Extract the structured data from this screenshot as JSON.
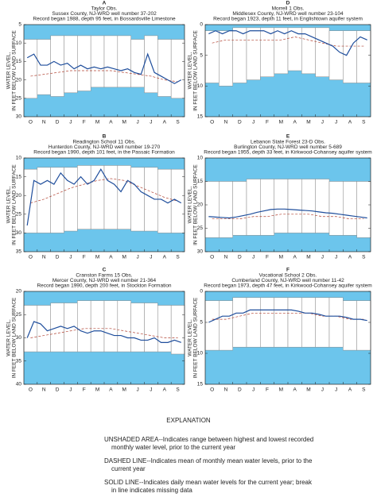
{
  "chart_data": [
    {
      "type": "hydrograph",
      "title": "A",
      "subtitle": [
        "Taylor Obs.",
        "Sussex County, NJ-WRD well number 37-202",
        "Record began 1988, depth 95 feet, in Bossardsville Limestone"
      ],
      "ylabel": [
        "WATER LEVEL,",
        "IN FEET BELOW LAND SURFACE"
      ],
      "categories": [
        "O",
        "N",
        "D",
        "J",
        "F",
        "M",
        "A",
        "M",
        "J",
        "J",
        "A",
        "S"
      ],
      "range_top": [
        9,
        9,
        8,
        8,
        8,
        8,
        8,
        8,
        9,
        8,
        9,
        9
      ],
      "range_bottom": [
        25,
        24,
        24.5,
        23.5,
        23,
        22,
        22,
        22,
        22,
        23.5,
        24.5,
        25
      ],
      "mean": [
        19,
        18.5,
        18,
        17.5,
        17.5,
        17.5,
        17.5,
        18,
        18.5,
        19,
        20,
        20.5
      ],
      "daily": [
        14,
        13,
        16,
        16,
        15,
        16,
        15.5,
        17,
        16,
        17,
        16.5,
        17,
        16.5,
        17,
        17.5,
        17,
        18,
        18.5,
        13,
        18,
        19,
        20,
        21,
        20
      ],
      "ylim": [
        5,
        30
      ],
      "yticks": [
        5,
        10,
        15,
        20,
        25,
        30
      ],
      "shade_color": "#6cc5ec",
      "line_color": "#1f4e9c"
    },
    {
      "type": "hydrograph",
      "title": "B",
      "subtitle": [
        "Readington School 11 Obs.",
        "Hunterdon County, NJ-WRD well number 19-270",
        "Record began 1990, depth 101 feet, in the Passaic Formation"
      ],
      "ylabel": [
        "WATER LEVEL,",
        "IN FEET BELOW LAND SURFACE"
      ],
      "categories": [
        "O",
        "N",
        "D",
        "J",
        "F",
        "M",
        "A",
        "M",
        "J",
        "J",
        "A",
        "S"
      ],
      "range_top": [
        13,
        12.5,
        12.5,
        12.5,
        12,
        12,
        12,
        12,
        12.5,
        12.5,
        13,
        13
      ],
      "range_bottom": [
        30,
        30,
        30,
        29.5,
        29,
        29,
        29,
        29,
        29.5,
        29.5,
        30,
        30
      ],
      "mean": [
        22,
        21,
        19.5,
        18,
        17,
        16,
        15.5,
        16,
        17.5,
        19,
        20.5,
        21.5
      ],
      "daily": [
        28,
        16,
        17,
        16,
        17,
        14,
        16,
        17,
        15,
        17,
        16,
        13,
        16,
        17,
        19,
        16,
        17,
        19,
        20,
        21,
        21,
        22,
        21,
        22
      ],
      "ylim": [
        10,
        35
      ],
      "yticks": [
        10,
        15,
        20,
        25,
        30,
        35
      ],
      "shade_color": "#6cc5ec",
      "line_color": "#1f4e9c"
    },
    {
      "type": "hydrograph",
      "title": "C",
      "subtitle": [
        "Cranston Farms 15 Obs.",
        "Mercer County, NJ-WRD well number 21-364",
        "Record began 1990, depth 200 feet, in Stockton Formation"
      ],
      "ylabel": [
        "WATER LEVEL,",
        "IN FEET BELOW LAND SURFACE"
      ],
      "categories": [
        "O",
        "N",
        "D",
        "J",
        "F",
        "M",
        "A",
        "M",
        "J",
        "J",
        "A",
        "S"
      ],
      "range_top": [
        23,
        23,
        22.5,
        22.5,
        22,
        22,
        22,
        22,
        22.5,
        22.5,
        23,
        23
      ],
      "range_bottom": [
        33,
        33,
        33,
        33,
        33,
        33,
        33,
        33,
        33,
        33,
        33,
        33.5
      ],
      "mean": [
        30,
        29.5,
        29,
        28.5,
        28,
        28,
        28,
        28.5,
        29,
        29.5,
        30,
        30
      ],
      "daily": [
        30,
        26.5,
        27,
        28.5,
        28,
        27.5,
        28,
        27.5,
        28.5,
        29,
        28.5,
        28.5,
        29,
        29.5,
        29.5,
        30,
        30,
        30.5,
        30.5,
        30,
        31,
        31,
        30.5,
        31
      ],
      "ylim": [
        20,
        40
      ],
      "yticks": [
        20,
        25,
        30,
        35,
        40
      ],
      "shade_color": "#6cc5ec",
      "line_color": "#1f4e9c"
    },
    {
      "type": "hydrograph",
      "title": "D",
      "subtitle": [
        "Morrell 1 Obs.",
        "Middlesex County, NJ-WRD well number 23-104",
        "Record began 1923, depth 11 feet, in Englishtown aquifer system"
      ],
      "ylabel": [
        "WATER LEVEL,",
        "IN FEET BELOW LAND SURFACE"
      ],
      "categories": [
        "O",
        "N",
        "D",
        "J",
        "F",
        "M",
        "A",
        "M",
        "J",
        "J",
        "A",
        "S"
      ],
      "range_top": [
        1,
        1,
        0.5,
        0.5,
        0.5,
        0.5,
        0.5,
        0.5,
        0.5,
        1,
        1,
        1
      ],
      "range_bottom": [
        9.5,
        10,
        9.5,
        9,
        8.5,
        8,
        7.5,
        8,
        8.5,
        9,
        9.5,
        9.5
      ],
      "mean": [
        3,
        2.5,
        2.5,
        2.5,
        2.5,
        2.5,
        2,
        2.5,
        3,
        3.5,
        3.5,
        3.5
      ],
      "daily": [
        1.5,
        1,
        1.5,
        1,
        1,
        1.5,
        1,
        1,
        1,
        1.5,
        1,
        1.5,
        1,
        1.5,
        1.5,
        2,
        2.5,
        3,
        3.5,
        4.5,
        5,
        3,
        2,
        2.5
      ],
      "ylim": [
        0,
        15
      ],
      "yticks": [
        0,
        5,
        10,
        15
      ],
      "shade_color": "#6cc5ec",
      "line_color": "#1f4e9c"
    },
    {
      "type": "hydrograph",
      "title": "E",
      "subtitle": [
        "Lebanon State Forest 23-D Obs.",
        "Burlington County, NJ-WRD well number 5-689",
        "Record began 1955, depth 33 feet, in Kirkwood-Cohansey aquifer system"
      ],
      "ylabel": [
        "WATER LEVEL,",
        "IN FEET BELOW LAND SURFACE"
      ],
      "categories": [
        "O",
        "N",
        "D",
        "J",
        "F",
        "M",
        "A",
        "M",
        "J",
        "J",
        "A",
        "S"
      ],
      "range_top": [
        15,
        15,
        15,
        14.5,
        14.5,
        14.5,
        14.5,
        14.5,
        14.5,
        15,
        15,
        15
      ],
      "range_bottom": [
        27,
        27,
        26.5,
        26.5,
        26.5,
        26,
        26,
        26,
        26,
        26.5,
        26.5,
        27
      ],
      "mean": [
        23,
        23,
        23,
        22.5,
        22.5,
        22,
        22,
        22,
        22.5,
        22.5,
        23,
        23
      ],
      "daily": [
        22.5,
        22.6,
        22.7,
        22.8,
        22.6,
        22.3,
        22,
        21.6,
        21.3,
        21,
        20.9,
        20.9,
        21,
        21.1,
        21.2,
        21.3,
        21.5,
        21.7,
        21.8,
        22,
        22.2,
        22.4,
        22.6,
        22.8
      ],
      "ylim": [
        10,
        30
      ],
      "yticks": [
        10,
        15,
        20,
        25,
        30
      ],
      "shade_color": "#6cc5ec",
      "line_color": "#1f4e9c"
    },
    {
      "type": "hydrograph",
      "title": "F",
      "subtitle": [
        "Vocational School 2 Obs.",
        "Cumberland County, NJ-WRD well number 11-42",
        "Record began 1973, depth 47 feet, in Kirkwood-Cohansey aquifer system"
      ],
      "ylabel": [
        "WATER LEVEL,",
        "IN FEET BELOW LAND SURFACE"
      ],
      "categories": [
        "O",
        "N",
        "D",
        "J",
        "F",
        "M",
        "A",
        "M",
        "J",
        "J",
        "A",
        "S"
      ],
      "range_top": [
        1.5,
        1.5,
        1,
        1,
        1,
        1,
        1,
        1,
        1,
        1,
        1.5,
        1.5
      ],
      "range_bottom": [
        9.5,
        9.5,
        9,
        9,
        9,
        9,
        9,
        9,
        9,
        9,
        9.5,
        9.5
      ],
      "mean": [
        4.5,
        4.5,
        4,
        3.5,
        3.5,
        3.5,
        3.5,
        3.5,
        4,
        4,
        4.5,
        4.5
      ],
      "daily": [
        5,
        4.5,
        4,
        4,
        3.5,
        3.5,
        3,
        3,
        3,
        3,
        3,
        3,
        3,
        3.2,
        3.5,
        3.5,
        3.7,
        4,
        4,
        4,
        4.2,
        4.5,
        4.5,
        4.7
      ],
      "ylim": [
        0,
        15
      ],
      "yticks": [
        0,
        5,
        10,
        15
      ],
      "shade_color": "#6cc5ec",
      "line_color": "#1f4e9c"
    }
  ],
  "explanation": {
    "title": "EXPLANATION",
    "items": [
      [
        "UNSHADED AREA--Indicates range between highest and lowest recorded",
        "monthly water level, prior to the current year"
      ],
      [
        "DASHED LINE--Indicates mean of monthly mean water levels, prior to the",
        "current year"
      ],
      [
        "SOLID LINE--Indicates daily mean water levels for the current year; break",
        "in line indicates missing data"
      ]
    ]
  }
}
